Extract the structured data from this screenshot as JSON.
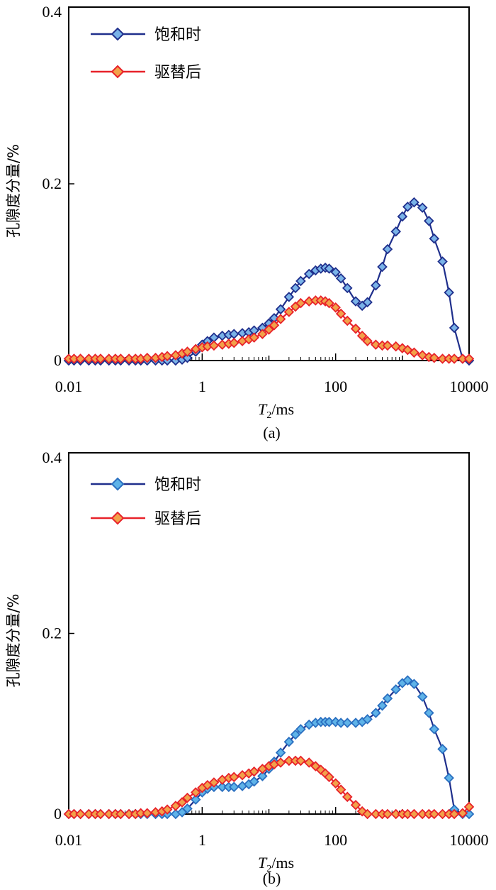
{
  "chart_data": [
    {
      "type": "line",
      "caption": "(a)",
      "xlabel": {
        "italic": "T",
        "sub": "2",
        "rest": "/ms"
      },
      "ylabel": "孔隙度分量/%",
      "x_scale": "log",
      "xlim": [
        0.01,
        10000
      ],
      "ylim": [
        0,
        0.4
      ],
      "x_ticks": [
        "0.01",
        "1",
        "100",
        "10000"
      ],
      "y_ticks": [
        "0",
        "0.2",
        "0.4"
      ],
      "legend_position": "top-left",
      "series": [
        {
          "name": "饱和时",
          "line_color": "#1f2f8c",
          "marker_fill": "#7ab3e8",
          "marker_stroke": "#1f2f8c",
          "points": [
            [
              0.01,
              0
            ],
            [
              0.012,
              0
            ],
            [
              0.015,
              0
            ],
            [
              0.02,
              0
            ],
            [
              0.025,
              0
            ],
            [
              0.03,
              0
            ],
            [
              0.04,
              0
            ],
            [
              0.05,
              0
            ],
            [
              0.06,
              0
            ],
            [
              0.08,
              0
            ],
            [
              0.1,
              0
            ],
            [
              0.12,
              0
            ],
            [
              0.15,
              0
            ],
            [
              0.2,
              0
            ],
            [
              0.25,
              0
            ],
            [
              0.3,
              0
            ],
            [
              0.4,
              0
            ],
            [
              0.5,
              0.001
            ],
            [
              0.6,
              0.003
            ],
            [
              0.8,
              0.01
            ],
            [
              1,
              0.018
            ],
            [
              1.2,
              0.022
            ],
            [
              1.5,
              0.026
            ],
            [
              2,
              0.028
            ],
            [
              2.5,
              0.029
            ],
            [
              3,
              0.03
            ],
            [
              4,
              0.031
            ],
            [
              5,
              0.032
            ],
            [
              6,
              0.034
            ],
            [
              8,
              0.037
            ],
            [
              10,
              0.042
            ],
            [
              12,
              0.048
            ],
            [
              15,
              0.058
            ],
            [
              20,
              0.072
            ],
            [
              25,
              0.082
            ],
            [
              30,
              0.09
            ],
            [
              40,
              0.098
            ],
            [
              50,
              0.102
            ],
            [
              60,
              0.104
            ],
            [
              70,
              0.105
            ],
            [
              80,
              0.104
            ],
            [
              100,
              0.1
            ],
            [
              120,
              0.093
            ],
            [
              150,
              0.082
            ],
            [
              200,
              0.067
            ],
            [
              250,
              0.062
            ],
            [
              300,
              0.066
            ],
            [
              400,
              0.085
            ],
            [
              500,
              0.106
            ],
            [
              600,
              0.126
            ],
            [
              800,
              0.146
            ],
            [
              1000,
              0.163
            ],
            [
              1200,
              0.174
            ],
            [
              1500,
              0.179
            ],
            [
              2000,
              0.173
            ],
            [
              2500,
              0.158
            ],
            [
              3000,
              0.138
            ],
            [
              4000,
              0.112
            ],
            [
              5000,
              0.077
            ],
            [
              6000,
              0.037
            ],
            [
              8000,
              0.002
            ],
            [
              10000,
              0
            ]
          ]
        },
        {
          "name": "驱替后",
          "line_color": "#e8222a",
          "marker_fill": "#f2a14a",
          "marker_stroke": "#e8222a",
          "points": [
            [
              0.01,
              0.002
            ],
            [
              0.012,
              0.002
            ],
            [
              0.015,
              0.002
            ],
            [
              0.02,
              0.002
            ],
            [
              0.025,
              0.002
            ],
            [
              0.03,
              0.002
            ],
            [
              0.04,
              0.002
            ],
            [
              0.05,
              0.002
            ],
            [
              0.06,
              0.002
            ],
            [
              0.08,
              0.002
            ],
            [
              0.1,
              0.002
            ],
            [
              0.12,
              0.002
            ],
            [
              0.15,
              0.003
            ],
            [
              0.2,
              0.003
            ],
            [
              0.25,
              0.004
            ],
            [
              0.3,
              0.005
            ],
            [
              0.4,
              0.006
            ],
            [
              0.5,
              0.008
            ],
            [
              0.6,
              0.01
            ],
            [
              0.8,
              0.013
            ],
            [
              1,
              0.015
            ],
            [
              1.2,
              0.016
            ],
            [
              1.5,
              0.017
            ],
            [
              2,
              0.018
            ],
            [
              2.5,
              0.019
            ],
            [
              3,
              0.02
            ],
            [
              4,
              0.022
            ],
            [
              5,
              0.024
            ],
            [
              6,
              0.026
            ],
            [
              8,
              0.03
            ],
            [
              10,
              0.035
            ],
            [
              12,
              0.04
            ],
            [
              15,
              0.047
            ],
            [
              20,
              0.055
            ],
            [
              25,
              0.061
            ],
            [
              30,
              0.065
            ],
            [
              40,
              0.067
            ],
            [
              50,
              0.068
            ],
            [
              60,
              0.068
            ],
            [
              70,
              0.067
            ],
            [
              80,
              0.065
            ],
            [
              100,
              0.06
            ],
            [
              120,
              0.053
            ],
            [
              150,
              0.045
            ],
            [
              200,
              0.036
            ],
            [
              250,
              0.028
            ],
            [
              300,
              0.022
            ],
            [
              400,
              0.018
            ],
            [
              500,
              0.017
            ],
            [
              600,
              0.017
            ],
            [
              800,
              0.016
            ],
            [
              1000,
              0.014
            ],
            [
              1200,
              0.012
            ],
            [
              1500,
              0.009
            ],
            [
              2000,
              0.006
            ],
            [
              2500,
              0.004
            ],
            [
              3000,
              0.003
            ],
            [
              4000,
              0.002
            ],
            [
              5000,
              0.002
            ],
            [
              6000,
              0.002
            ],
            [
              8000,
              0.002
            ],
            [
              10000,
              0.002
            ]
          ]
        }
      ]
    },
    {
      "type": "line",
      "caption": "(b)",
      "xlabel": {
        "italic": "T",
        "sub": "2",
        "rest": "/ms"
      },
      "ylabel": "孔隙度分量/%",
      "x_scale": "log",
      "xlim": [
        0.01,
        10000
      ],
      "ylim": [
        0,
        0.4
      ],
      "x_ticks": [
        "0.01",
        "1",
        "100",
        "10000"
      ],
      "y_ticks": [
        "0",
        "0.2",
        "0.4"
      ],
      "legend_position": "top-left",
      "series": [
        {
          "name": "饱和时",
          "line_color": "#1f2f8c",
          "marker_fill": "#5fb3e8",
          "marker_stroke": "#2a6fc0",
          "points": [
            [
              0.01,
              0
            ],
            [
              0.012,
              0
            ],
            [
              0.015,
              0
            ],
            [
              0.02,
              0
            ],
            [
              0.025,
              0
            ],
            [
              0.03,
              0
            ],
            [
              0.04,
              0
            ],
            [
              0.05,
              0
            ],
            [
              0.06,
              0
            ],
            [
              0.08,
              0
            ],
            [
              0.1,
              0
            ],
            [
              0.12,
              0
            ],
            [
              0.15,
              0
            ],
            [
              0.2,
              0
            ],
            [
              0.25,
              0
            ],
            [
              0.3,
              0
            ],
            [
              0.4,
              0
            ],
            [
              0.5,
              0.002
            ],
            [
              0.6,
              0.006
            ],
            [
              0.8,
              0.016
            ],
            [
              1,
              0.024
            ],
            [
              1.2,
              0.028
            ],
            [
              1.5,
              0.03
            ],
            [
              2,
              0.03
            ],
            [
              2.5,
              0.03
            ],
            [
              3,
              0.03
            ],
            [
              4,
              0.031
            ],
            [
              5,
              0.033
            ],
            [
              6,
              0.036
            ],
            [
              8,
              0.042
            ],
            [
              10,
              0.05
            ],
            [
              12,
              0.058
            ],
            [
              15,
              0.068
            ],
            [
              20,
              0.08
            ],
            [
              25,
              0.088
            ],
            [
              30,
              0.094
            ],
            [
              40,
              0.099
            ],
            [
              50,
              0.101
            ],
            [
              60,
              0.102
            ],
            [
              70,
              0.102
            ],
            [
              80,
              0.102
            ],
            [
              100,
              0.102
            ],
            [
              120,
              0.101
            ],
            [
              150,
              0.101
            ],
            [
              200,
              0.101
            ],
            [
              250,
              0.102
            ],
            [
              300,
              0.105
            ],
            [
              400,
              0.112
            ],
            [
              500,
              0.12
            ],
            [
              600,
              0.128
            ],
            [
              800,
              0.138
            ],
            [
              1000,
              0.145
            ],
            [
              1200,
              0.148
            ],
            [
              1500,
              0.144
            ],
            [
              2000,
              0.13
            ],
            [
              2500,
              0.112
            ],
            [
              3000,
              0.094
            ],
            [
              4000,
              0.072
            ],
            [
              5000,
              0.04
            ],
            [
              6000,
              0.005
            ],
            [
              8000,
              0
            ],
            [
              10000,
              0
            ]
          ]
        },
        {
          "name": "驱替后",
          "line_color": "#e8222a",
          "marker_fill": "#f2a14a",
          "marker_stroke": "#e8222a",
          "points": [
            [
              0.01,
              0
            ],
            [
              0.012,
              0
            ],
            [
              0.015,
              0
            ],
            [
              0.02,
              0
            ],
            [
              0.025,
              0
            ],
            [
              0.03,
              0
            ],
            [
              0.04,
              0
            ],
            [
              0.05,
              0
            ],
            [
              0.06,
              0
            ],
            [
              0.08,
              0
            ],
            [
              0.1,
              0
            ],
            [
              0.12,
              0.001
            ],
            [
              0.15,
              0.001
            ],
            [
              0.2,
              0.002
            ],
            [
              0.25,
              0.003
            ],
            [
              0.3,
              0.005
            ],
            [
              0.4,
              0.009
            ],
            [
              0.5,
              0.013
            ],
            [
              0.6,
              0.018
            ],
            [
              0.8,
              0.024
            ],
            [
              1,
              0.029
            ],
            [
              1.2,
              0.032
            ],
            [
              1.5,
              0.035
            ],
            [
              2,
              0.038
            ],
            [
              2.5,
              0.04
            ],
            [
              3,
              0.041
            ],
            [
              4,
              0.043
            ],
            [
              5,
              0.045
            ],
            [
              6,
              0.047
            ],
            [
              8,
              0.05
            ],
            [
              10,
              0.053
            ],
            [
              12,
              0.055
            ],
            [
              15,
              0.057
            ],
            [
              20,
              0.059
            ],
            [
              25,
              0.059
            ],
            [
              30,
              0.059
            ],
            [
              40,
              0.057
            ],
            [
              50,
              0.053
            ],
            [
              60,
              0.049
            ],
            [
              70,
              0.045
            ],
            [
              80,
              0.041
            ],
            [
              100,
              0.034
            ],
            [
              120,
              0.027
            ],
            [
              150,
              0.019
            ],
            [
              200,
              0.01
            ],
            [
              250,
              0.003
            ],
            [
              300,
              0
            ],
            [
              400,
              0
            ],
            [
              500,
              0
            ],
            [
              600,
              0
            ],
            [
              800,
              0
            ],
            [
              1000,
              0
            ],
            [
              1200,
              0
            ],
            [
              1500,
              0
            ],
            [
              2000,
              0
            ],
            [
              2500,
              0
            ],
            [
              3000,
              0
            ],
            [
              4000,
              0
            ],
            [
              5000,
              0
            ],
            [
              6000,
              0
            ],
            [
              8000,
              0.001
            ],
            [
              10000,
              0.008
            ]
          ]
        }
      ]
    }
  ]
}
